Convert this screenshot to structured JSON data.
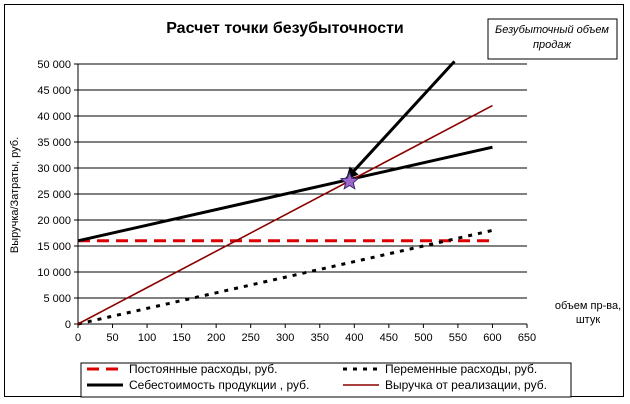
{
  "chart_data": {
    "type": "line",
    "title": "Расчет точки безубыточности",
    "annotation": [
      "Безубыточный объем",
      "продаж"
    ],
    "ylabel": "Выручка/Затраты, руб.",
    "xlabel": [
      "объем пр-ва,",
      "штук"
    ],
    "xlim": [
      0,
      650
    ],
    "ylim": [
      0,
      50000
    ],
    "x_ticks": [
      "0",
      "50",
      "100",
      "150",
      "200",
      "250",
      "300",
      "350",
      "400",
      "450",
      "500",
      "550",
      "600",
      "650"
    ],
    "y_ticks": [
      "0",
      "5 000",
      "10 000",
      "15 000",
      "20 000",
      "25 000",
      "30 000",
      "35 000",
      "40 000",
      "45 000",
      "50 000"
    ],
    "grid": "horizontal",
    "legend_position": "bottom",
    "series": [
      {
        "name": "Постоянные расходы, руб.",
        "color": "#dd0000",
        "style": "dashed",
        "x": [
          0,
          600
        ],
        "y": [
          16000,
          16000
        ]
      },
      {
        "name": "Переменные расходы, руб.",
        "color": "#000000",
        "style": "dotted",
        "x": [
          0,
          600
        ],
        "y": [
          0,
          18000
        ]
      },
      {
        "name": "Себестоимость продукции , руб.",
        "color": "#000000",
        "style": "solid-thick",
        "x": [
          0,
          600
        ],
        "y": [
          16000,
          34000
        ]
      },
      {
        "name": "Выручка от реализации, руб.",
        "color": "#8b0000",
        "style": "solid",
        "x": [
          0,
          600
        ],
        "y": [
          0,
          42000
        ]
      }
    ],
    "break_even": {
      "x": 393,
      "y": 27400,
      "color": "#9966cc"
    },
    "arrow": {
      "from": [
        545,
        50500
      ],
      "to": [
        388,
        27800
      ],
      "color": "#000000"
    }
  }
}
